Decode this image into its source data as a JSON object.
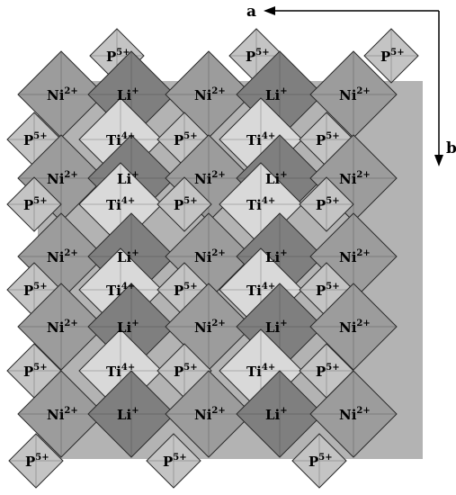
{
  "figure": {
    "axes": [
      {
        "label": "a",
        "direction": "left"
      },
      {
        "label": "b",
        "direction": "down"
      }
    ],
    "ions": {
      "P": {
        "symbol": "P",
        "charge": "5+"
      },
      "Ni": {
        "symbol": "Ni",
        "charge": "2+"
      },
      "Li": {
        "symbol": "Li",
        "charge": "+"
      },
      "Ti": {
        "symbol": "Ti",
        "charge": "4+"
      }
    },
    "colors": {
      "Li": "#7f7f7f",
      "Ni": "#9c9c9c",
      "Ti": "#d9d9d9",
      "P": "#c4c4c4",
      "edge": "#2b2b2b"
    },
    "layout": [
      [
        "P",
        "P",
        "P"
      ],
      [
        "Ni",
        "Li",
        "Ni",
        "Li",
        "Ni"
      ],
      [
        "P",
        "Ti",
        "P",
        "Ti",
        "P"
      ],
      [
        "Ni",
        "Li",
        "Ni",
        "Li",
        "Ni"
      ],
      [
        "P",
        "Ti",
        "P",
        "Ti",
        "P"
      ],
      [
        "Ni",
        "Li",
        "Ni",
        "Li",
        "Ni"
      ],
      [
        "P",
        "Ti",
        "P",
        "Ti",
        "P"
      ],
      [
        "Ni",
        "Li",
        "Ni",
        "Li",
        "Ni"
      ],
      [
        "P",
        "Ti",
        "P",
        "Ti",
        "P"
      ],
      [
        "Ni",
        "Li",
        "Ni",
        "Li",
        "Ni"
      ],
      [
        "P",
        "P",
        "P"
      ]
    ]
  }
}
